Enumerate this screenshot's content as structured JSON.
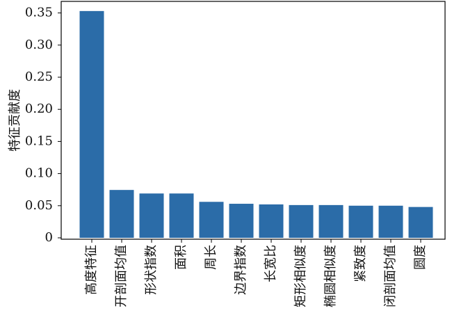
{
  "chart_data": {
    "type": "bar",
    "ylabel": "特征贡献度",
    "categories": [
      "高度特征",
      "开剖面均值",
      "形状指数",
      "面积",
      "周长",
      "边界指数",
      "长宽比",
      "矩形相似度",
      "椭圆相似度",
      "紧致度",
      "闭剖面均值",
      "圆度"
    ],
    "values": [
      0.353,
      0.0745,
      0.069,
      0.069,
      0.056,
      0.053,
      0.052,
      0.051,
      0.051,
      0.05,
      0.05,
      0.048
    ],
    "color": "#2b6ca8",
    "ylim": [
      0,
      0.368
    ],
    "yticks": [
      0,
      0.05,
      {
        "value": 0.1,
        "label": "0.10"
      },
      0.15,
      {
        "value": 0.2,
        "label": "0.20"
      },
      0.25,
      {
        "value": 0.3,
        "label": "0.30"
      },
      0.35
    ],
    "grid": false
  }
}
